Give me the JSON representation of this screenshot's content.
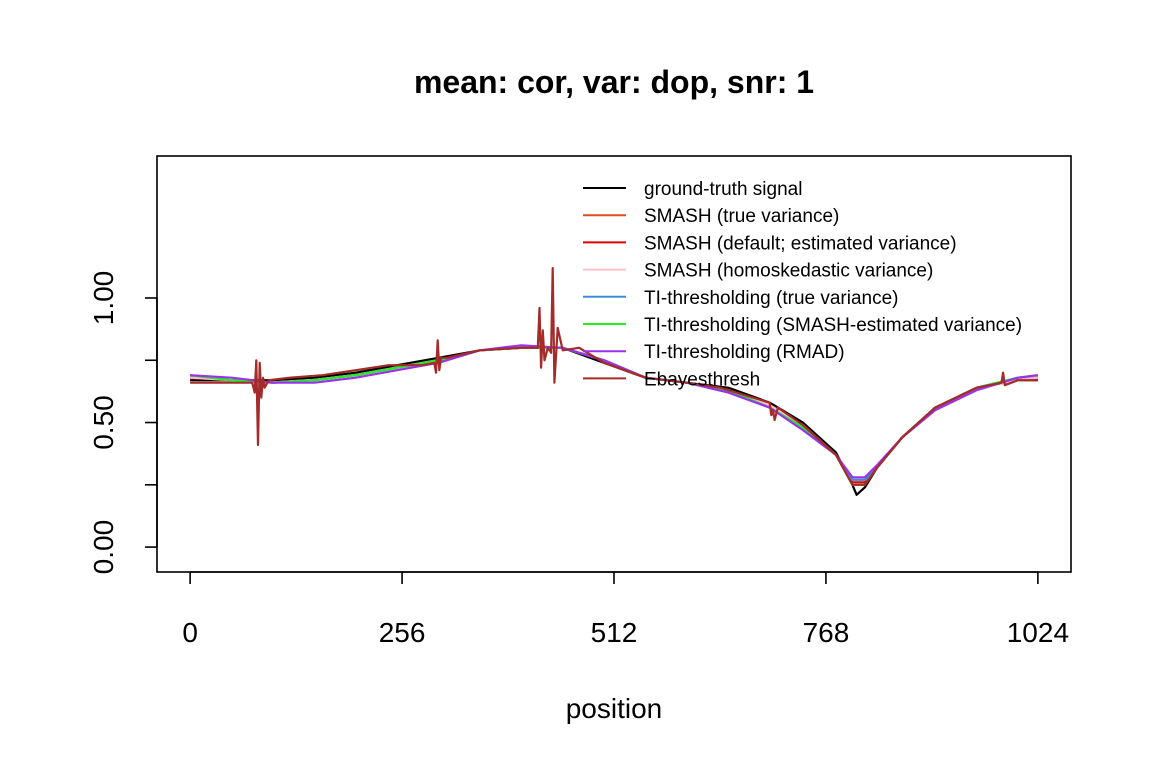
{
  "chart_data": {
    "type": "line",
    "title": "mean: cor, var: dop, snr: 1",
    "xlabel": "position",
    "ylabel": "",
    "xlim": [
      -40,
      1064
    ],
    "ylim": [
      -0.1,
      1.57
    ],
    "xticks": [
      0,
      256,
      512,
      768,
      1024
    ],
    "xtick_labels": [
      "0",
      "256",
      "512",
      "768",
      "1024"
    ],
    "yticks": [
      0.0,
      0.25,
      0.5,
      0.75,
      1.0
    ],
    "ytick_labels": [
      "0.00",
      "",
      "0.50",
      "",
      "1.00"
    ],
    "legend_position": "top-right",
    "grid": false,
    "series": [
      {
        "name": "ground-truth signal",
        "color": "#000000",
        "x": [
          0,
          50,
          100,
          150,
          200,
          250,
          300,
          350,
          400,
          450,
          500,
          550,
          600,
          650,
          700,
          740,
          780,
          800,
          805,
          815,
          830,
          860,
          900,
          950,
          1000,
          1024
        ],
        "values": [
          0.67,
          0.67,
          0.67,
          0.68,
          0.7,
          0.73,
          0.76,
          0.79,
          0.8,
          0.8,
          0.74,
          0.68,
          0.66,
          0.64,
          0.58,
          0.5,
          0.38,
          0.25,
          0.21,
          0.24,
          0.32,
          0.44,
          0.56,
          0.64,
          0.67,
          0.67
        ]
      },
      {
        "name": "SMASH (true variance)",
        "color": "#e34a1a",
        "x": [
          0,
          50,
          100,
          150,
          200,
          250,
          300,
          350,
          400,
          450,
          500,
          550,
          600,
          650,
          700,
          740,
          780,
          800,
          815,
          830,
          860,
          900,
          950,
          1000,
          1024
        ],
        "values": [
          0.68,
          0.67,
          0.66,
          0.67,
          0.69,
          0.72,
          0.75,
          0.79,
          0.8,
          0.8,
          0.75,
          0.68,
          0.66,
          0.63,
          0.57,
          0.49,
          0.37,
          0.27,
          0.27,
          0.32,
          0.44,
          0.56,
          0.64,
          0.67,
          0.68
        ]
      },
      {
        "name": "SMASH (default; estimated variance)",
        "color": "#dd0000",
        "x": [
          0,
          50,
          100,
          150,
          200,
          250,
          300,
          350,
          400,
          450,
          500,
          550,
          600,
          650,
          700,
          740,
          780,
          800,
          815,
          830,
          860,
          900,
          950,
          1000,
          1024
        ],
        "values": [
          0.68,
          0.67,
          0.66,
          0.67,
          0.69,
          0.72,
          0.75,
          0.79,
          0.8,
          0.8,
          0.75,
          0.68,
          0.66,
          0.63,
          0.57,
          0.49,
          0.37,
          0.26,
          0.26,
          0.32,
          0.44,
          0.56,
          0.64,
          0.67,
          0.68
        ]
      },
      {
        "name": "SMASH (homoskedastic variance)",
        "color": "#ffc0cb",
        "x": [
          0,
          50,
          100,
          150,
          200,
          250,
          300,
          350,
          400,
          450,
          500,
          550,
          600,
          650,
          700,
          740,
          780,
          800,
          815,
          830,
          860,
          900,
          950,
          1000,
          1024
        ],
        "values": [
          0.68,
          0.67,
          0.66,
          0.67,
          0.69,
          0.72,
          0.75,
          0.79,
          0.8,
          0.8,
          0.75,
          0.68,
          0.66,
          0.63,
          0.57,
          0.49,
          0.37,
          0.27,
          0.27,
          0.32,
          0.44,
          0.56,
          0.64,
          0.67,
          0.68
        ]
      },
      {
        "name": "TI-thresholding (true variance)",
        "color": "#3a8ed8",
        "x": [
          0,
          50,
          100,
          150,
          200,
          250,
          300,
          350,
          400,
          450,
          500,
          550,
          600,
          650,
          700,
          740,
          780,
          800,
          815,
          830,
          860,
          900,
          950,
          1000,
          1024
        ],
        "values": [
          0.69,
          0.67,
          0.66,
          0.67,
          0.69,
          0.72,
          0.75,
          0.79,
          0.8,
          0.8,
          0.75,
          0.68,
          0.66,
          0.63,
          0.56,
          0.48,
          0.37,
          0.27,
          0.27,
          0.32,
          0.44,
          0.56,
          0.64,
          0.68,
          0.69
        ]
      },
      {
        "name": "TI-thresholding (SMASH-estimated variance)",
        "color": "#22ee22",
        "x": [
          0,
          50,
          100,
          150,
          200,
          250,
          300,
          350,
          400,
          450,
          500,
          550,
          600,
          650,
          700,
          740,
          780,
          800,
          815,
          830,
          860,
          900,
          950,
          1000,
          1024
        ],
        "values": [
          0.69,
          0.67,
          0.66,
          0.67,
          0.69,
          0.72,
          0.75,
          0.79,
          0.8,
          0.8,
          0.75,
          0.68,
          0.66,
          0.63,
          0.56,
          0.48,
          0.37,
          0.25,
          0.25,
          0.32,
          0.44,
          0.56,
          0.64,
          0.68,
          0.69
        ]
      },
      {
        "name": "TI-thresholding (RMAD)",
        "color": "#9b30ee",
        "x": [
          0,
          50,
          100,
          150,
          200,
          250,
          300,
          350,
          400,
          450,
          500,
          550,
          600,
          650,
          700,
          740,
          780,
          800,
          815,
          830,
          860,
          900,
          950,
          1000,
          1024
        ],
        "values": [
          0.69,
          0.68,
          0.66,
          0.66,
          0.68,
          0.71,
          0.74,
          0.79,
          0.81,
          0.8,
          0.75,
          0.68,
          0.66,
          0.62,
          0.56,
          0.47,
          0.37,
          0.28,
          0.28,
          0.33,
          0.44,
          0.55,
          0.63,
          0.68,
          0.69
        ]
      },
      {
        "name": "Ebayesthresh",
        "color": "#a52a2a",
        "x": [
          0,
          40,
          75,
          78,
          80,
          82,
          84,
          86,
          88,
          90,
          95,
          120,
          160,
          200,
          240,
          280,
          295,
          297,
          299,
          301,
          303,
          310,
          350,
          400,
          420,
          422,
          424,
          426,
          428,
          432,
          436,
          438,
          440,
          444,
          450,
          470,
          500,
          550,
          600,
          640,
          700,
          702,
          704,
          706,
          710,
          740,
          780,
          800,
          815,
          830,
          860,
          900,
          950,
          980,
          982,
          984,
          1000,
          1024
        ],
        "values": [
          0.66,
          0.66,
          0.66,
          0.62,
          0.75,
          0.41,
          0.74,
          0.6,
          0.68,
          0.64,
          0.67,
          0.68,
          0.69,
          0.71,
          0.73,
          0.73,
          0.74,
          0.7,
          0.83,
          0.71,
          0.76,
          0.76,
          0.79,
          0.8,
          0.8,
          0.96,
          0.72,
          0.87,
          0.75,
          0.8,
          0.78,
          1.12,
          0.66,
          0.88,
          0.79,
          0.8,
          0.74,
          0.68,
          0.66,
          0.64,
          0.58,
          0.53,
          0.55,
          0.51,
          0.56,
          0.49,
          0.37,
          0.25,
          0.25,
          0.32,
          0.44,
          0.56,
          0.64,
          0.66,
          0.7,
          0.65,
          0.67,
          0.67
        ]
      }
    ]
  }
}
